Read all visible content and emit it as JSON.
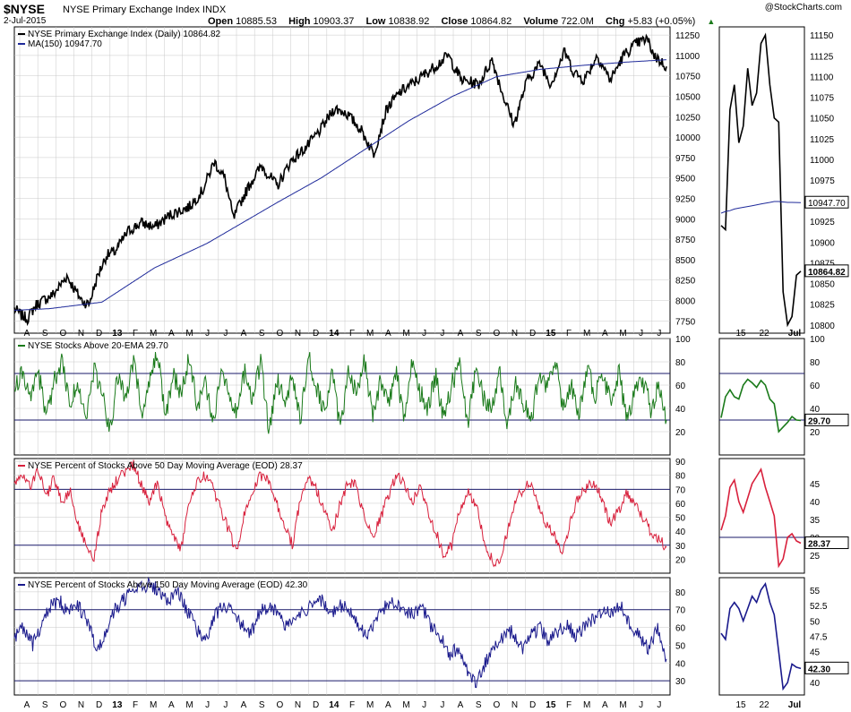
{
  "header": {
    "symbol": "$NYSE",
    "description": "NYSE Primary Exchange Index  INDX",
    "date": "2-Jul-2015",
    "brand": "@StockCharts.com",
    "open_label": "Open",
    "open": "10885.53",
    "high_label": "High",
    "high": "10903.37",
    "low_label": "Low",
    "low": "10838.92",
    "close_label": "Close",
    "close": "10864.82",
    "volume_label": "Volume",
    "volume": "722.0M",
    "chg_label": "Chg",
    "chg": "+5.83 (+0.05%)"
  },
  "colors": {
    "price": "#000000",
    "ma": "#1f2a9a",
    "green": "#1a7a1a",
    "red": "#d8203c",
    "navy": "#1a1a8c",
    "grid": "#c8c8c8"
  },
  "x_axis_main": [
    "A",
    "S",
    "O",
    "N",
    "D",
    "13",
    "F",
    "M",
    "A",
    "M",
    "J",
    "J",
    "A",
    "S",
    "O",
    "N",
    "D",
    "14",
    "F",
    "M",
    "A",
    "M",
    "J",
    "J",
    "A",
    "S",
    "O",
    "N",
    "D",
    "15",
    "F",
    "M",
    "A",
    "M",
    "J",
    "J"
  ],
  "x_axis_zoom": [
    "15",
    "22",
    "Jul"
  ],
  "chart_data": [
    {
      "type": "line",
      "legend": [
        "NYSE Primary Exchange Index (Daily) 10864.82",
        "MA(150) 10947.70"
      ],
      "ylim": [
        7600,
        11350
      ],
      "yticks": [
        7750,
        8000,
        8250,
        8500,
        8750,
        9000,
        9250,
        9500,
        9750,
        10000,
        10250,
        10500,
        10750,
        11000,
        11250
      ],
      "series": [
        {
          "name": "NYSE Primary Exchange Index (Daily)",
          "anchors": [
            [
              0,
              7900
            ],
            [
              8,
              7820
            ],
            [
              15,
              7780
            ],
            [
              25,
              7950
            ],
            [
              45,
              8080
            ],
            [
              60,
              8300
            ],
            [
              68,
              8150
            ],
            [
              77,
              8000
            ],
            [
              85,
              7950
            ],
            [
              95,
              8300
            ],
            [
              105,
              8550
            ],
            [
              115,
              8600
            ],
            [
              130,
              8850
            ],
            [
              145,
              8950
            ],
            [
              160,
              8900
            ],
            [
              178,
              9050
            ],
            [
              200,
              9150
            ],
            [
              215,
              9350
            ],
            [
              228,
              9700
            ],
            [
              240,
              9500
            ],
            [
              250,
              9000
            ],
            [
              258,
              9200
            ],
            [
              270,
              9450
            ],
            [
              282,
              9650
            ],
            [
              300,
              9400
            ],
            [
              315,
              9700
            ],
            [
              335,
              9900
            ],
            [
              350,
              10100
            ],
            [
              365,
              10350
            ],
            [
              378,
              10300
            ],
            [
              395,
              10100
            ],
            [
              410,
              9800
            ],
            [
              425,
              10350
            ],
            [
              440,
              10550
            ],
            [
              460,
              10700
            ],
            [
              478,
              10850
            ],
            [
              495,
              11000
            ],
            [
              510,
              10700
            ],
            [
              530,
              10650
            ],
            [
              545,
              10950
            ],
            [
              558,
              10500
            ],
            [
              570,
              10150
            ],
            [
              585,
              10700
            ],
            [
              600,
              10900
            ],
            [
              612,
              10650
            ],
            [
              628,
              11050
            ],
            [
              638,
              10800
            ],
            [
              650,
              10700
            ],
            [
              665,
              11000
            ],
            [
              680,
              10700
            ],
            [
              695,
              11000
            ],
            [
              710,
              11150
            ],
            [
              722,
              11200
            ],
            [
              730,
              11000
            ],
            [
              740,
              10900
            ],
            [
              744,
              10864.82
            ]
          ],
          "color": "#000000"
        },
        {
          "name": "MA(150)",
          "anchors": [
            [
              0,
              7880
            ],
            [
              40,
              7900
            ],
            [
              100,
              7980
            ],
            [
              160,
              8400
            ],
            [
              220,
              8700
            ],
            [
              260,
              8950
            ],
            [
              300,
              9200
            ],
            [
              350,
              9500
            ],
            [
              400,
              9850
            ],
            [
              450,
              10200
            ],
            [
              500,
              10500
            ],
            [
              550,
              10740
            ],
            [
              600,
              10830
            ],
            [
              650,
              10880
            ],
            [
              700,
              10920
            ],
            [
              744,
              10947.7
            ]
          ],
          "color": "#1f2a9a"
        }
      ],
      "last_value": "10864.82"
    },
    {
      "type": "line",
      "legend": [
        "NYSE Stocks Above 20-EMA 29.70"
      ],
      "ylim": [
        0,
        100
      ],
      "yticks": [
        20,
        40,
        60,
        80,
        100
      ],
      "reference_lines": [
        30,
        70
      ],
      "series": [
        {
          "name": "NYSE Stocks Above 20-EMA",
          "values": [
            55,
            70,
            48,
            72,
            35,
            62,
            80,
            40,
            65,
            30,
            75,
            55,
            20,
            68,
            45,
            82,
            38,
            60,
            88,
            30,
            70,
            50,
            85,
            40,
            62,
            25,
            78,
            55,
            35,
            72,
            48,
            82,
            20,
            65,
            45,
            70,
            30,
            85,
            55,
            40,
            68,
            22,
            75,
            50,
            82,
            35,
            62,
            45,
            72,
            28,
            78,
            55,
            40,
            68,
            30,
            60,
            80,
            25,
            70,
            50,
            40,
            75,
            20,
            65,
            45,
            30,
            70,
            55,
            82,
            40,
            62,
            35,
            75,
            50,
            68,
            45,
            72,
            30,
            55,
            65,
            40,
            58,
            29.7
          ],
          "color": "#1a7a1a"
        }
      ],
      "last_value": "29.70"
    },
    {
      "type": "line",
      "legend": [
        "NYSE Percent of Stocks Above 50 Day Moving Average (EOD) 28.37"
      ],
      "ylim": [
        10,
        92
      ],
      "yticks": [
        20,
        30,
        40,
        50,
        60,
        70,
        80,
        90
      ],
      "reference_lines": [
        30,
        70
      ],
      "series": [
        {
          "name": "NYSE Percent of Stocks Above 50 Day Moving Average (EOD)",
          "values": [
            75,
            80,
            72,
            85,
            65,
            78,
            60,
            70,
            45,
            30,
            20,
            55,
            68,
            78,
            82,
            88,
            72,
            60,
            75,
            50,
            35,
            28,
            60,
            75,
            80,
            70,
            55,
            40,
            25,
            55,
            70,
            80,
            75,
            60,
            45,
            30,
            65,
            78,
            70,
            55,
            40,
            60,
            75,
            72,
            50,
            35,
            48,
            65,
            80,
            75,
            60,
            72,
            55,
            40,
            22,
            30,
            55,
            68,
            60,
            35,
            20,
            15,
            40,
            62,
            70,
            75,
            55,
            45,
            35,
            25,
            50,
            65,
            72,
            75,
            60,
            45,
            55,
            68,
            60,
            50,
            40,
            35,
            28.37
          ],
          "color": "#d8203c"
        }
      ],
      "last_value": "28.37"
    },
    {
      "type": "line",
      "legend": [
        "NYSE Percent of Stocks Above 150 Day Moving Average (EOD) 42.30"
      ],
      "ylim": [
        22,
        88
      ],
      "yticks": [
        30,
        40,
        50,
        60,
        70,
        80
      ],
      "reference_lines": [
        30,
        70
      ],
      "series": [
        {
          "name": "NYSE Percent of Stocks Above 150 Day Moving Average (EOD)",
          "values": [
            55,
            60,
            50,
            62,
            72,
            75,
            68,
            72,
            65,
            48,
            55,
            70,
            75,
            80,
            82,
            85,
            80,
            75,
            82,
            70,
            60,
            52,
            65,
            72,
            70,
            62,
            55,
            68,
            72,
            70,
            60,
            65,
            70,
            72,
            75,
            68,
            72,
            70,
            60,
            55,
            65,
            72,
            75,
            70,
            68,
            72,
            60,
            55,
            45,
            48,
            35,
            28,
            40,
            50,
            55,
            58,
            48,
            55,
            60,
            52,
            58,
            62,
            55,
            60,
            65,
            70,
            68,
            72,
            62,
            55,
            48,
            60,
            42.3
          ],
          "color": "#1a1a8c"
        }
      ],
      "last_value": "42.30"
    }
  ],
  "chart_zoom": [
    {
      "type": "line",
      "ylim": [
        10790,
        11160
      ],
      "yticks": [
        10800,
        10825,
        10850,
        10875,
        10900,
        10925,
        10950,
        10975,
        11000,
        11025,
        11050,
        11075,
        11100,
        11125,
        11150
      ],
      "series": [
        {
          "name": "NYSE Primary Exchange Index (Daily)",
          "values": [
            10920,
            10915,
            11060,
            11090,
            11020,
            11040,
            11110,
            11065,
            11080,
            11140,
            11150,
            11090,
            11050,
            11045,
            10840,
            10800,
            10810,
            10860,
            10864.82
          ],
          "color": "#000000"
        },
        {
          "name": "MA(150)",
          "values": [
            10935,
            10937,
            10938,
            10940,
            10941,
            10942,
            10943,
            10944,
            10945,
            10946,
            10947,
            10948,
            10949,
            10949,
            10948.5,
            10948,
            10948,
            10947.8,
            10947.7
          ],
          "color": "#1f2a9a"
        }
      ],
      "last_value": "10864.82",
      "ma_value": "10947.70"
    },
    {
      "type": "line",
      "ylim": [
        0,
        100
      ],
      "yticks": [
        20,
        40,
        60,
        80,
        100
      ],
      "reference_lines": [
        30,
        70
      ],
      "series": [
        {
          "name": "NYSE Stocks Above 20-EMA",
          "values": [
            32,
            50,
            56,
            50,
            48,
            60,
            65,
            62,
            58,
            64,
            60,
            48,
            44,
            20,
            24,
            28,
            33,
            30,
            29.7
          ],
          "color": "#1a7a1a"
        }
      ],
      "last_value": "29.70"
    },
    {
      "type": "line",
      "ylim": [
        20,
        52
      ],
      "yticks": [
        25,
        30,
        35,
        40,
        45
      ],
      "reference_lines": [
        30
      ],
      "series": [
        {
          "name": "NYSE Percent of Stocks Above 50 Day Moving Average (EOD)",
          "values": [
            32,
            36,
            44,
            46,
            40,
            37,
            41,
            45,
            47,
            49,
            44,
            40,
            36,
            22,
            24,
            30,
            31,
            29,
            28.37
          ],
          "color": "#d8203c"
        }
      ],
      "last_value": "28.37"
    },
    {
      "type": "line",
      "ylim": [
        38,
        57
      ],
      "yticks": [
        40,
        42.5,
        45,
        47.5,
        50,
        52.5,
        55
      ],
      "series": [
        {
          "name": "NYSE Percent of Stocks Above 150 Day Moving Average (EOD)",
          "values": [
            48,
            47,
            52,
            53,
            52,
            50,
            52,
            54,
            53,
            55,
            56,
            53,
            51,
            45,
            39,
            40,
            43,
            42.5,
            42.3
          ],
          "color": "#1a1a8c"
        }
      ],
      "last_value": "42.30"
    }
  ]
}
